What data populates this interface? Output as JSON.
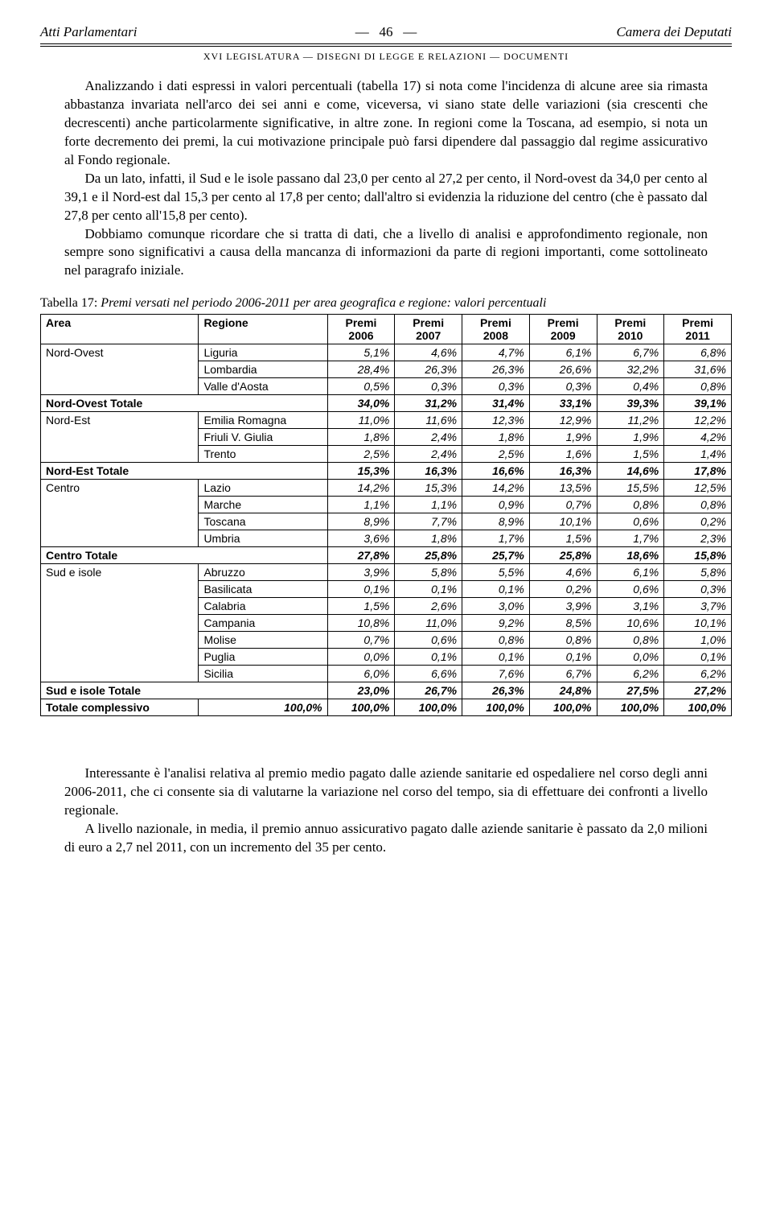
{
  "header": {
    "left": "Atti Parlamentari",
    "page_dash_l": "—",
    "page": "46",
    "page_dash_r": "—",
    "right": "Camera dei Deputati",
    "sub": "XVI LEGISLATURA — DISEGNI DI LEGGE E RELAZIONI — DOCUMENTI"
  },
  "para1": "Analizzando i dati espressi in valori percentuali (tabella 17) si nota come l'incidenza di alcune aree sia rimasta abbastanza invariata nell'arco dei sei anni e come, viceversa, vi siano state delle variazioni (sia crescenti che decrescenti) anche particolarmente significative, in altre zone. In regioni come la Toscana, ad esempio, si nota un forte decremento dei premi, la cui motivazione principale può farsi dipendere dal passaggio dal regime assicurativo al Fondo regionale.",
  "para2": "Da un lato, infatti, il Sud e le isole passano dal 23,0 per cento al 27,2 per cento, il Nord-ovest da 34,0 per cento al 39,1 e il Nord-est dal 15,3 per cento al 17,8 per cento; dall'altro si evidenzia la riduzione del centro (che è passato dal 27,8 per cento all'15,8 per cento).",
  "para3": "Dobbiamo comunque ricordare che si tratta di dati, che a livello di analisi e approfondimento regionale, non sempre sono significativi a causa della mancanza di informazioni da parte di regioni importanti, come sottolineato nel paragrafo iniziale.",
  "table_caption_label": "Tabella 17: ",
  "table_caption_desc": "Premi versati nel periodo 2006-2011 per area geografica e regione: valori percentuali",
  "cols": {
    "area": "Area",
    "regione": "Regione",
    "y06a": "Premi",
    "y06b": "2006",
    "y07a": "Premi",
    "y07b": "2007",
    "y08a": "Premi",
    "y08b": "2008",
    "y09a": "Premi",
    "y09b": "2009",
    "y10a": "Premi",
    "y10b": "2010",
    "y11a": "Premi",
    "y11b": "2011"
  },
  "areas": {
    "no": "Nord-Ovest",
    "no_tot": "Nord-Ovest Totale",
    "ne": "Nord-Est",
    "ne_tot": "Nord-Est Totale",
    "ce": "Centro",
    "ce_tot": "Centro Totale",
    "su": "Sud e isole",
    "su_tot": "Sud e isole Totale",
    "grand": "Totale complessivo",
    "grand_val": "100,0%"
  },
  "rows": {
    "liguria": {
      "r": "Liguria",
      "v": [
        "5,1%",
        "4,6%",
        "4,7%",
        "6,1%",
        "6,7%",
        "6,8%"
      ]
    },
    "lombardia": {
      "r": "Lombardia",
      "v": [
        "28,4%",
        "26,3%",
        "26,3%",
        "26,6%",
        "32,2%",
        "31,6%"
      ]
    },
    "valle": {
      "r": "Valle d'Aosta",
      "v": [
        "0,5%",
        "0,3%",
        "0,3%",
        "0,3%",
        "0,4%",
        "0,8%"
      ]
    },
    "no_tot": {
      "v": [
        "34,0%",
        "31,2%",
        "31,4%",
        "33,1%",
        "39,3%",
        "39,1%"
      ]
    },
    "emilia": {
      "r": "Emilia Romagna",
      "v": [
        "11,0%",
        "11,6%",
        "12,3%",
        "12,9%",
        "11,2%",
        "12,2%"
      ]
    },
    "friuli": {
      "r": "Friuli V. Giulia",
      "v": [
        "1,8%",
        "2,4%",
        "1,8%",
        "1,9%",
        "1,9%",
        "4,2%"
      ]
    },
    "trento": {
      "r": "Trento",
      "v": [
        "2,5%",
        "2,4%",
        "2,5%",
        "1,6%",
        "1,5%",
        "1,4%"
      ]
    },
    "ne_tot": {
      "v": [
        "15,3%",
        "16,3%",
        "16,6%",
        "16,3%",
        "14,6%",
        "17,8%"
      ]
    },
    "lazio": {
      "r": "Lazio",
      "v": [
        "14,2%",
        "15,3%",
        "14,2%",
        "13,5%",
        "15,5%",
        "12,5%"
      ]
    },
    "marche": {
      "r": "Marche",
      "v": [
        "1,1%",
        "1,1%",
        "0,9%",
        "0,7%",
        "0,8%",
        "0,8%"
      ]
    },
    "toscana": {
      "r": "Toscana",
      "v": [
        "8,9%",
        "7,7%",
        "8,9%",
        "10,1%",
        "0,6%",
        "0,2%"
      ]
    },
    "umbria": {
      "r": "Umbria",
      "v": [
        "3,6%",
        "1,8%",
        "1,7%",
        "1,5%",
        "1,7%",
        "2,3%"
      ]
    },
    "ce_tot": {
      "v": [
        "27,8%",
        "25,8%",
        "25,7%",
        "25,8%",
        "18,6%",
        "15,8%"
      ]
    },
    "abruzzo": {
      "r": "Abruzzo",
      "v": [
        "3,9%",
        "5,8%",
        "5,5%",
        "4,6%",
        "6,1%",
        "5,8%"
      ]
    },
    "basilicata": {
      "r": "Basilicata",
      "v": [
        "0,1%",
        "0,1%",
        "0,1%",
        "0,2%",
        "0,6%",
        "0,3%"
      ]
    },
    "calabria": {
      "r": "Calabria",
      "v": [
        "1,5%",
        "2,6%",
        "3,0%",
        "3,9%",
        "3,1%",
        "3,7%"
      ]
    },
    "campania": {
      "r": "Campania",
      "v": [
        "10,8%",
        "11,0%",
        "9,2%",
        "8,5%",
        "10,6%",
        "10,1%"
      ]
    },
    "molise": {
      "r": "Molise",
      "v": [
        "0,7%",
        "0,6%",
        "0,8%",
        "0,8%",
        "0,8%",
        "1,0%"
      ]
    },
    "puglia": {
      "r": "Puglia",
      "v": [
        "0,0%",
        "0,1%",
        "0,1%",
        "0,1%",
        "0,0%",
        "0,1%"
      ]
    },
    "sicilia": {
      "r": "Sicilia",
      "v": [
        "6,0%",
        "6,6%",
        "7,6%",
        "6,7%",
        "6,2%",
        "6,2%"
      ]
    },
    "su_tot": {
      "v": [
        "23,0%",
        "26,7%",
        "26,3%",
        "24,8%",
        "27,5%",
        "27,2%"
      ]
    },
    "grand": {
      "v": [
        "100,0%",
        "100,0%",
        "100,0%",
        "100,0%",
        "100,0%",
        "100,0%"
      ]
    }
  },
  "para4": "Interessante è l'analisi relativa al premio medio pagato dalle aziende sanitarie ed ospedaliere nel corso degli anni 2006-2011, che ci consente sia di valutarne la variazione nel corso del tempo, sia di effettuare dei confronti a livello regionale.",
  "para5": "A livello nazionale, in media, il premio annuo assicurativo pagato dalle aziende sanitarie è passato da 2,0 milioni di euro a 2,7 nel 2011, con un incremento del 35 per cento."
}
